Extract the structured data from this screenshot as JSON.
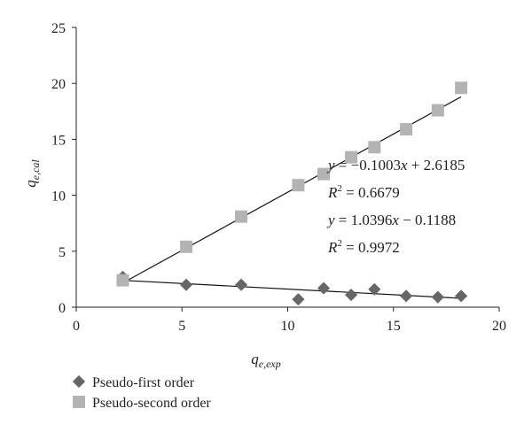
{
  "chart_data": {
    "type": "scatter",
    "xlim": [
      0,
      20
    ],
    "ylim": [
      0,
      25
    ],
    "x_ticks": [
      "0",
      "5",
      "10",
      "15",
      "20"
    ],
    "y_ticks": [
      "0",
      "5",
      "10",
      "15",
      "20",
      "25"
    ],
    "xlabel": {
      "main": "q",
      "sub": "e,exp"
    },
    "ylabel": {
      "main": "q",
      "sub": "e,cal"
    },
    "grid": false,
    "legend_position": "bottom-left",
    "series": [
      {
        "name": "Pseudo-first order",
        "marker": "diamond",
        "color": "#666666",
        "x": [
          2.2,
          5.2,
          7.8,
          10.5,
          11.7,
          13.0,
          14.1,
          15.6,
          17.1,
          18.2
        ],
        "y": [
          2.7,
          2.0,
          2.0,
          0.7,
          1.7,
          1.1,
          1.6,
          1.0,
          0.9,
          1.0
        ],
        "trendline": {
          "slope": -0.1003,
          "intercept": 2.6185
        }
      },
      {
        "name": "Pseudo-second order",
        "marker": "square",
        "color": "#b3b3b3",
        "x": [
          2.2,
          5.2,
          7.8,
          10.5,
          11.7,
          13.0,
          14.1,
          15.6,
          17.1,
          18.2
        ],
        "y": [
          2.4,
          5.4,
          8.1,
          10.9,
          11.9,
          13.4,
          14.3,
          15.9,
          17.6,
          19.6
        ],
        "trendline": {
          "slope": 1.0396,
          "intercept": -0.1188
        }
      }
    ],
    "annotations": [
      {
        "id": "eq1",
        "text": "y = −0.1003x + 2.6185"
      },
      {
        "id": "r1",
        "text": "R2 = 0.6679"
      },
      {
        "id": "eq2",
        "text": "y = 1.0396x − 0.1188"
      },
      {
        "id": "r2",
        "text": "R2 = 0.9972"
      }
    ]
  }
}
